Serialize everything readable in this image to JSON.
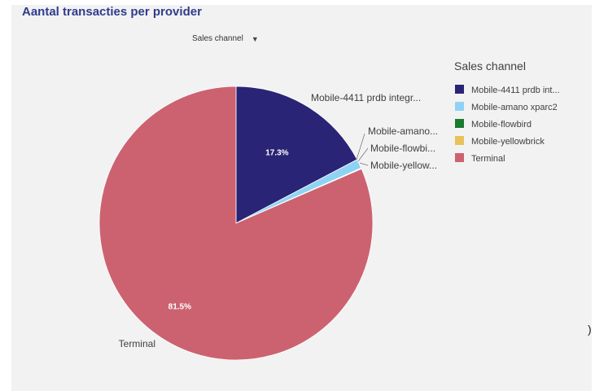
{
  "title": "Aantal transacties per provider",
  "dimension_selector": {
    "label": "Sales channel",
    "icon": "chevron-down-icon"
  },
  "right_marker": ")",
  "chart_data": {
    "type": "pie",
    "title": "Aantal transacties per provider",
    "legend_title": "Sales channel",
    "legend_position": "right",
    "slices": [
      {
        "label": "Mobile-4411 prdb integr...",
        "legend_label": "Mobile-4411 prdb int...",
        "value": 17.3,
        "value_label": "17.3%",
        "color": "#2a2476"
      },
      {
        "label": "Mobile-amano...",
        "legend_label": "Mobile-amano xparc2",
        "value": 1.1,
        "value_label": "",
        "color": "#8fd3f4"
      },
      {
        "label": "Mobile-flowbi...",
        "legend_label": "Mobile-flowbird",
        "value": 0.05,
        "value_label": "",
        "color": "#1a7a2e"
      },
      {
        "label": "Mobile-yellow...",
        "legend_label": "Mobile-yellowbrick",
        "value": 0.05,
        "value_label": "",
        "color": "#e8c25a"
      },
      {
        "label": "Terminal",
        "legend_label": "Terminal",
        "value": 81.5,
        "value_label": "81.5%",
        "color": "#cc6270"
      }
    ]
  }
}
